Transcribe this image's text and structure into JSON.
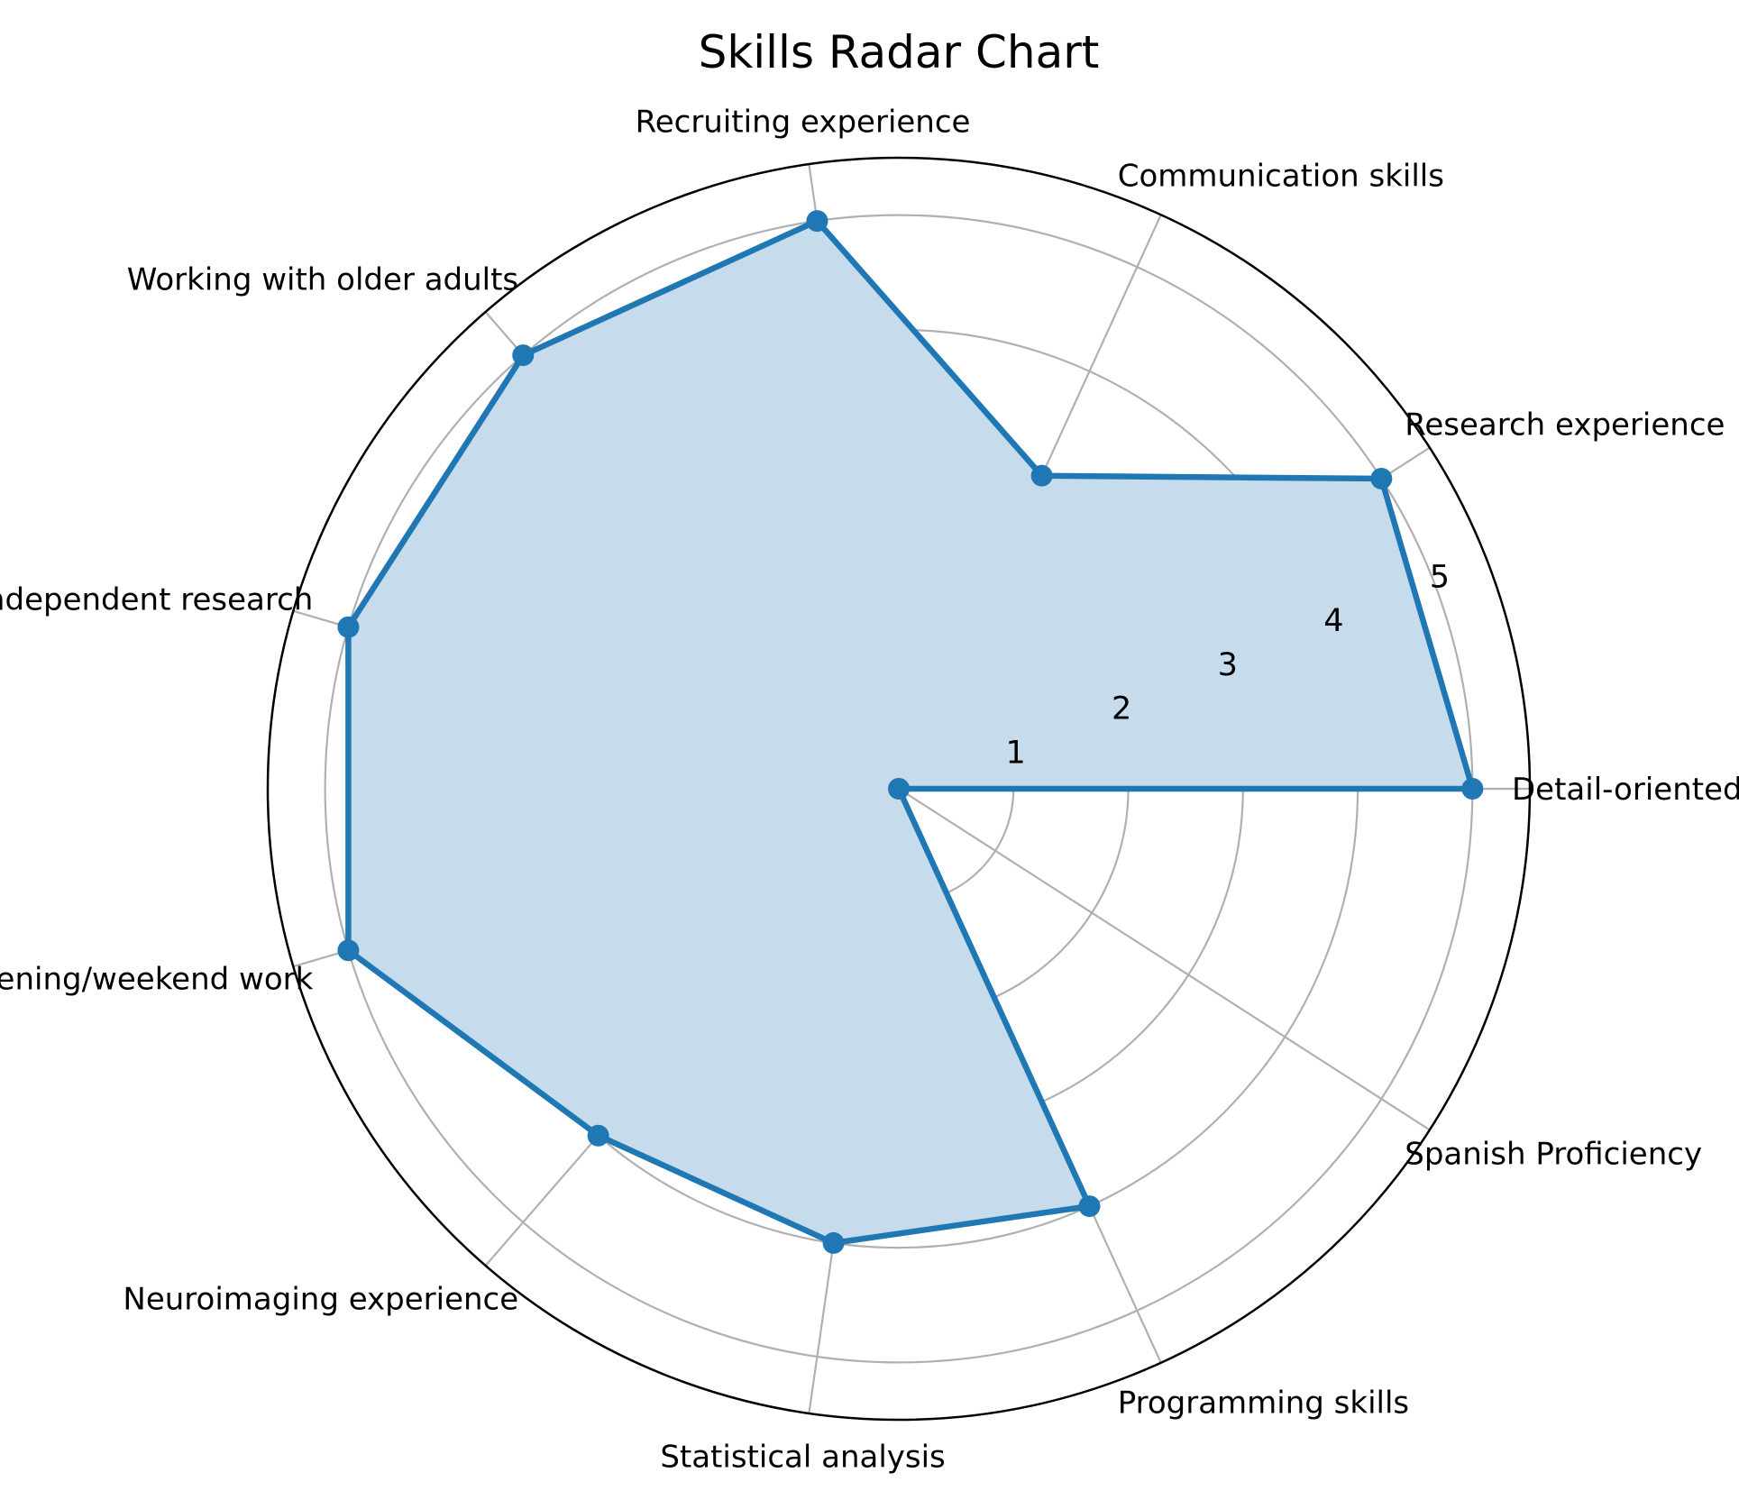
{
  "chart_data": {
    "type": "radar",
    "title": "Skills Radar Chart",
    "categories": [
      "Detail-oriented",
      "Research experience",
      "Communication skills",
      "Recruiting experience",
      "Working with older adults",
      "Independent research",
      "Evening/weekend work",
      "Neuroimaging experience",
      "Statistical analysis",
      "Programming skills",
      "Spanish Proficiency"
    ],
    "series": [
      {
        "values": [
          5,
          5,
          3,
          5,
          5,
          5,
          5,
          4,
          4,
          4,
          0
        ]
      }
    ],
    "rlim": [
      0,
      5.5
    ],
    "rticks": [
      "1",
      "2",
      "3",
      "4",
      "5"
    ],
    "grid": true,
    "colors": {
      "line": "#1f77b4",
      "fill": "#c6dbec",
      "grid": "#b0b0b0",
      "frame": "#000000"
    }
  }
}
